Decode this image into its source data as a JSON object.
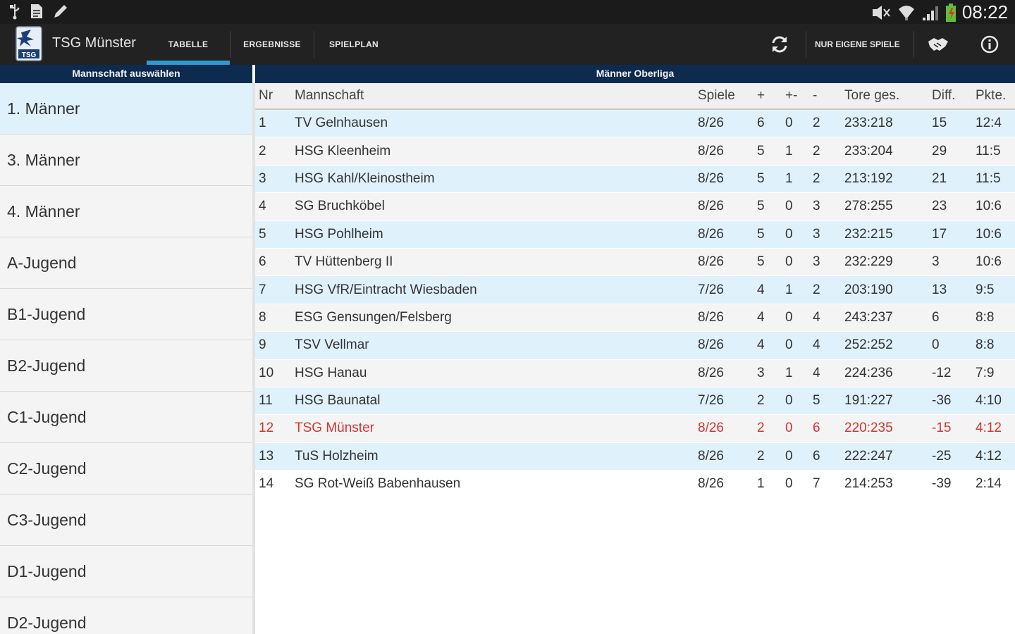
{
  "statusbar": {
    "time": "08:22",
    "left_icons": [
      "usb-icon",
      "file-icon",
      "pencil-icon"
    ],
    "right_icons": [
      "mute-icon",
      "wifi-icon",
      "signal-icon",
      "battery-icon"
    ]
  },
  "actionbar": {
    "app_title": "TSG Münster",
    "tabs": [
      {
        "label": "TABELLE",
        "active": true
      },
      {
        "label": "ERGEBNISSE",
        "active": false
      },
      {
        "label": "SPIELPLAN",
        "active": false
      }
    ],
    "refresh_icon": "refresh-icon",
    "own_games_label": "NUR EIGENE SPIELE",
    "handshake_icon": "handshake-icon",
    "info_icon": "info-icon",
    "accent_color": "#2b9bd6"
  },
  "sidebar": {
    "header": "Mannschaft auswählen",
    "items": [
      {
        "label": "1. Männer",
        "selected": true
      },
      {
        "label": "3. Männer"
      },
      {
        "label": "4. Männer"
      },
      {
        "label": "A-Jugend"
      },
      {
        "label": "B1-Jugend"
      },
      {
        "label": "B2-Jugend"
      },
      {
        "label": "C1-Jugend"
      },
      {
        "label": "C2-Jugend"
      },
      {
        "label": "C3-Jugend"
      },
      {
        "label": "D1-Jugend"
      },
      {
        "label": "D2-Jugend"
      }
    ]
  },
  "table": {
    "league": "Männer Oberliga",
    "columns": {
      "nr": "Nr",
      "team": "Mannschaft",
      "games": "Spiele",
      "win": "+",
      "draw": "+-",
      "loss": "-",
      "goals": "Tore ges.",
      "diff": "Diff.",
      "pts": "Pkte."
    },
    "own_color": "#d7332f",
    "rows": [
      {
        "nr": "1",
        "team": "TV Gelnhausen",
        "games": "8/26",
        "win": "6",
        "draw": "0",
        "loss": "2",
        "goals": "233:218",
        "diff": "15",
        "pts": "12:4"
      },
      {
        "nr": "2",
        "team": "HSG Kleenheim",
        "games": "8/26",
        "win": "5",
        "draw": "1",
        "loss": "2",
        "goals": "233:204",
        "diff": "29",
        "pts": "11:5"
      },
      {
        "nr": "3",
        "team": "HSG Kahl/Kleinostheim",
        "games": "8/26",
        "win": "5",
        "draw": "1",
        "loss": "2",
        "goals": "213:192",
        "diff": "21",
        "pts": "11:5"
      },
      {
        "nr": "4",
        "team": "SG Bruchköbel",
        "games": "8/26",
        "win": "5",
        "draw": "0",
        "loss": "3",
        "goals": "278:255",
        "diff": "23",
        "pts": "10:6"
      },
      {
        "nr": "5",
        "team": "HSG Pohlheim",
        "games": "8/26",
        "win": "5",
        "draw": "0",
        "loss": "3",
        "goals": "232:215",
        "diff": "17",
        "pts": "10:6"
      },
      {
        "nr": "6",
        "team": "TV Hüttenberg II",
        "games": "8/26",
        "win": "5",
        "draw": "0",
        "loss": "3",
        "goals": "232:229",
        "diff": "3",
        "pts": "10:6"
      },
      {
        "nr": "7",
        "team": "HSG VfR/Eintracht Wiesbaden",
        "games": "7/26",
        "win": "4",
        "draw": "1",
        "loss": "2",
        "goals": "203:190",
        "diff": "13",
        "pts": "9:5"
      },
      {
        "nr": "8",
        "team": "ESG Gensungen/Felsberg",
        "games": "8/26",
        "win": "4",
        "draw": "0",
        "loss": "4",
        "goals": "243:237",
        "diff": "6",
        "pts": "8:8"
      },
      {
        "nr": "9",
        "team": "TSV Vellmar",
        "games": "8/26",
        "win": "4",
        "draw": "0",
        "loss": "4",
        "goals": "252:252",
        "diff": "0",
        "pts": "8:8"
      },
      {
        "nr": "10",
        "team": "HSG Hanau",
        "games": "8/26",
        "win": "3",
        "draw": "1",
        "loss": "4",
        "goals": "224:236",
        "diff": "-12",
        "pts": "7:9"
      },
      {
        "nr": "11",
        "team": "HSG Baunatal",
        "games": "7/26",
        "win": "2",
        "draw": "0",
        "loss": "5",
        "goals": "191:227",
        "diff": "-36",
        "pts": "4:10"
      },
      {
        "nr": "12",
        "team": "TSG Münster",
        "games": "8/26",
        "win": "2",
        "draw": "0",
        "loss": "6",
        "goals": "220:235",
        "diff": "-15",
        "pts": "4:12",
        "own": true
      },
      {
        "nr": "13",
        "team": "TuS Holzheim",
        "games": "8/26",
        "win": "2",
        "draw": "0",
        "loss": "6",
        "goals": "222:247",
        "diff": "-25",
        "pts": "4:12"
      },
      {
        "nr": "14",
        "team": "SG Rot-Weiß Babenhausen",
        "games": "8/26",
        "win": "1",
        "draw": "0",
        "loss": "7",
        "goals": "214:253",
        "diff": "-39",
        "pts": "2:14"
      }
    ]
  }
}
